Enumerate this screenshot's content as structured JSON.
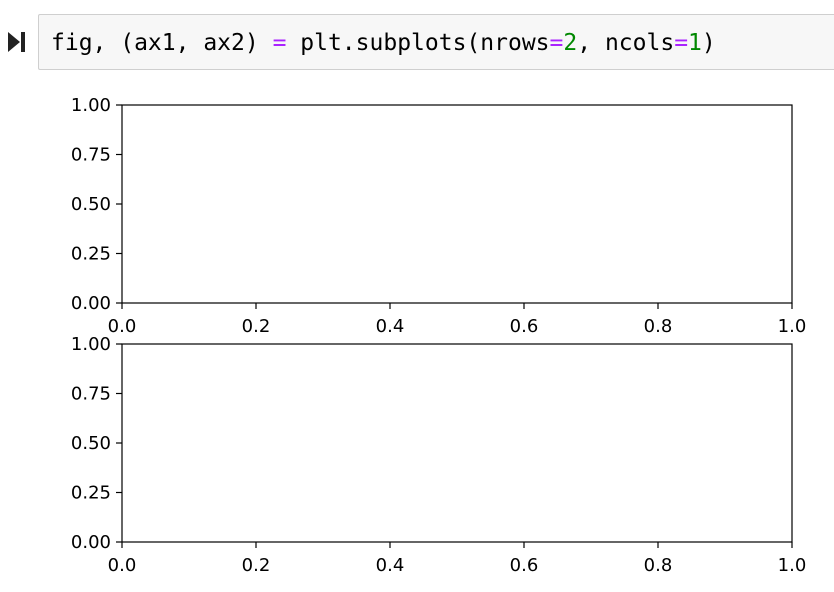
{
  "toolbar": {
    "run_icon": "run-cell-icon"
  },
  "cell": {
    "code_tokens": [
      {
        "text": "fig, (ax1, ax2) ",
        "kind": "plain"
      },
      {
        "text": "=",
        "kind": "op"
      },
      {
        "text": " plt.subplots(nrows",
        "kind": "plain"
      },
      {
        "text": "=",
        "kind": "op"
      },
      {
        "text": "2",
        "kind": "num"
      },
      {
        "text": ", ncols",
        "kind": "plain"
      },
      {
        "text": "=",
        "kind": "op"
      },
      {
        "text": "1",
        "kind": "num"
      },
      {
        "text": ")",
        "kind": "plain"
      }
    ]
  },
  "chart_data": [
    {
      "type": "line",
      "series": [],
      "xlim": [
        0.0,
        1.0
      ],
      "ylim": [
        0.0,
        1.0
      ],
      "xticks": [
        "0.0",
        "0.2",
        "0.4",
        "0.6",
        "0.8",
        "1.0"
      ],
      "yticks": [
        "0.00",
        "0.25",
        "0.50",
        "0.75",
        "1.00"
      ],
      "grid": false
    },
    {
      "type": "line",
      "series": [],
      "xlim": [
        0.0,
        1.0
      ],
      "ylim": [
        0.0,
        1.0
      ],
      "xticks": [
        "0.0",
        "0.2",
        "0.4",
        "0.6",
        "0.8",
        "1.0"
      ],
      "yticks": [
        "0.00",
        "0.25",
        "0.50",
        "0.75",
        "1.00"
      ],
      "grid": false
    }
  ]
}
